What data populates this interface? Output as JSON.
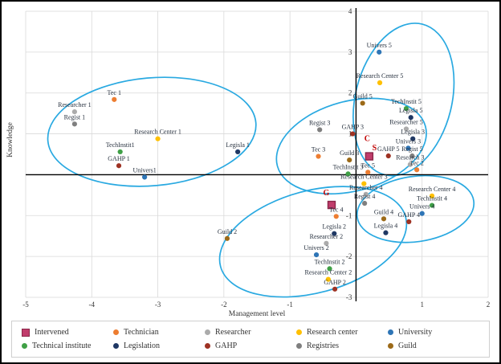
{
  "colors": {
    "intervened": "#c13d6c",
    "intervened_border": "#8a2648",
    "technician": "#ed7d31",
    "researcher": "#ababab",
    "research_center": "#ffc000",
    "university": "#2e75b6",
    "technical_institute": "#3fa046",
    "legislation": "#1f3864",
    "gahp": "#9e3223",
    "registries": "#7f7f7f",
    "guild": "#9c6a18",
    "cluster_ellipse": "#29a9e1",
    "annotation": "#c00000",
    "gridline": "#d9d9d9",
    "axis": "#000000"
  },
  "chart_data": {
    "type": "scatter",
    "title": "",
    "xlabel": "Management level",
    "ylabel": "Knowledge",
    "xlim": [
      -5,
      2
    ],
    "ylim": [
      -3,
      4
    ],
    "x_ticks": [
      -5,
      -4,
      -3,
      -2,
      -1,
      1,
      2
    ],
    "y_ticks": [
      4,
      3,
      2,
      1,
      -1,
      -2,
      -3
    ],
    "grid": true,
    "legend_position": "bottom",
    "points": [
      {
        "label": "Tec 1",
        "x": -3.66,
        "y": 1.84,
        "cat": "technician"
      },
      {
        "label": "Researcher 1",
        "x": -4.26,
        "y": 1.54,
        "cat": "researcher"
      },
      {
        "label": "Regist 1",
        "x": -4.26,
        "y": 1.24,
        "cat": "registries"
      },
      {
        "label": "Research Center 1",
        "x": -3.0,
        "y": 0.88,
        "cat": "research_center"
      },
      {
        "label": "TechInstit1",
        "x": -3.57,
        "y": 0.56,
        "cat": "technical_institute"
      },
      {
        "label": "GAHP 1",
        "x": -3.59,
        "y": 0.22,
        "cat": "gahp"
      },
      {
        "label": "Univers1",
        "x": -3.2,
        "y": -0.06,
        "cat": "university"
      },
      {
        "label": "Legisla 1",
        "x": -1.79,
        "y": 0.56,
        "cat": "legislation"
      },
      {
        "label": "Regist 3",
        "x": -0.55,
        "y": 1.1,
        "cat": "registries"
      },
      {
        "label": "GAHP 3",
        "x": -0.05,
        "y": 1.0,
        "cat": "gahp"
      },
      {
        "label": "Tec 3",
        "x": -0.57,
        "y": 0.45,
        "cat": "technician"
      },
      {
        "label": "Guild 3",
        "x": -0.1,
        "y": 0.36,
        "cat": "guild"
      },
      {
        "label": "TechInstit 3",
        "x": -0.12,
        "y": 0.02,
        "cat": "technical_institute"
      },
      {
        "label": "Tec 5",
        "x": 0.18,
        "y": 0.06,
        "cat": "technician"
      },
      {
        "label": "Research Center 3",
        "x": 0.12,
        "y": -0.22,
        "cat": "research_center"
      },
      {
        "label": "",
        "x": 0.2,
        "y": 0.45,
        "cat": "intervened"
      },
      {
        "label": "",
        "x": -0.37,
        "y": -0.74,
        "cat": "intervened"
      },
      {
        "label": "Univers 5",
        "x": 0.35,
        "y": 3.0,
        "cat": "university"
      },
      {
        "label": "Research Center 5",
        "x": 0.36,
        "y": 2.25,
        "cat": "research_center"
      },
      {
        "label": "Guild 5",
        "x": 0.1,
        "y": 1.75,
        "cat": "guild"
      },
      {
        "label": "TechInstit 5",
        "x": 0.76,
        "y": 1.62,
        "cat": "technical_institute"
      },
      {
        "label": "Legisla 5",
        "x": 0.83,
        "y": 1.4,
        "cat": "legislation"
      },
      {
        "label": "Researcher 5",
        "x": 0.76,
        "y": 1.12,
        "cat": "researcher"
      },
      {
        "label": "Legisla 3",
        "x": 0.86,
        "y": 0.88,
        "cat": "legislation"
      },
      {
        "label": "Univers 3",
        "x": 0.79,
        "y": 0.65,
        "cat": "university"
      },
      {
        "label": "GAHP 5",
        "x": 0.49,
        "y": 0.46,
        "cat": "gahp"
      },
      {
        "label": "Regist 5",
        "x": 0.85,
        "y": 0.46,
        "cat": "registries"
      },
      {
        "label": "Research 3",
        "x": 0.82,
        "y": 0.25,
        "cat": "researcher"
      },
      {
        "label": "Tec 2",
        "x": 0.92,
        "y": 0.12,
        "cat": "technician"
      },
      {
        "label": "Researcher 4",
        "x": 0.15,
        "y": -0.48,
        "cat": "researcher"
      },
      {
        "label": "Regist 4",
        "x": 0.13,
        "y": -0.7,
        "cat": "registries"
      },
      {
        "label": "Research Center 4",
        "x": 1.15,
        "y": -0.52,
        "cat": "research_center"
      },
      {
        "label": "TechInstit 4",
        "x": 1.15,
        "y": -0.75,
        "cat": "technical_institute"
      },
      {
        "label": "Univers 4",
        "x": 1.0,
        "y": -0.95,
        "cat": "university"
      },
      {
        "label": "Guild 4",
        "x": 0.42,
        "y": -1.08,
        "cat": "guild"
      },
      {
        "label": "GAHP 4",
        "x": 0.8,
        "y": -1.15,
        "cat": "gahp"
      },
      {
        "label": "Legisla 4",
        "x": 0.45,
        "y": -1.42,
        "cat": "legislation"
      },
      {
        "label": "Tec 4",
        "x": -0.3,
        "y": -1.02,
        "cat": "technician"
      },
      {
        "label": "Legisla 2",
        "x": -0.33,
        "y": -1.44,
        "cat": "legislation"
      },
      {
        "label": "Researcher 2",
        "x": -0.45,
        "y": -1.68,
        "cat": "researcher"
      },
      {
        "label": "Univers 2",
        "x": -0.6,
        "y": -1.96,
        "cat": "university"
      },
      {
        "label": "TechInstit 2",
        "x": -0.4,
        "y": -2.3,
        "cat": "technical_institute"
      },
      {
        "label": "Research Center 2",
        "x": -0.42,
        "y": -2.56,
        "cat": "research_center"
      },
      {
        "label": "GAHP 2",
        "x": -0.32,
        "y": -2.8,
        "cat": "gahp"
      },
      {
        "label": "Guild 2",
        "x": -1.95,
        "y": -1.56,
        "cat": "guild"
      }
    ],
    "annotations": [
      {
        "text": "C",
        "x": 0.17,
        "y": 0.82
      },
      {
        "text": "S",
        "x": 0.28,
        "y": 0.6
      },
      {
        "text": "G",
        "x": -0.45,
        "y": -0.5
      }
    ],
    "clusters": [
      {
        "x": -3.09,
        "y": 1.05,
        "rx": 1.58,
        "ry": 1.32,
        "rot": -5
      },
      {
        "x": -0.07,
        "y": 0.7,
        "rx": 1.16,
        "ry": 1.1,
        "rot": -15
      },
      {
        "x": 0.72,
        "y": 1.84,
        "rx": 0.73,
        "ry": 1.9,
        "rot": 14
      },
      {
        "x": 0.9,
        "y": -0.84,
        "rx": 0.89,
        "ry": 0.8,
        "rot": -8
      },
      {
        "x": -0.65,
        "y": -1.64,
        "rx": 1.45,
        "ry": 1.25,
        "rot": -15
      }
    ]
  },
  "legend": {
    "rows": [
      [
        {
          "label": "Intervened",
          "cat": "intervened"
        },
        {
          "label": "Technician",
          "cat": "technician"
        },
        {
          "label": "Researcher",
          "cat": "researcher"
        },
        {
          "label": "Research center",
          "cat": "research_center"
        },
        {
          "label": "University",
          "cat": "university"
        }
      ],
      [
        {
          "label": "Technical institute",
          "cat": "technical_institute"
        },
        {
          "label": "Legislation",
          "cat": "legislation"
        },
        {
          "label": "GAHP",
          "cat": "gahp"
        },
        {
          "label": "Registries",
          "cat": "registries"
        },
        {
          "label": "Guild",
          "cat": "guild"
        }
      ]
    ]
  }
}
